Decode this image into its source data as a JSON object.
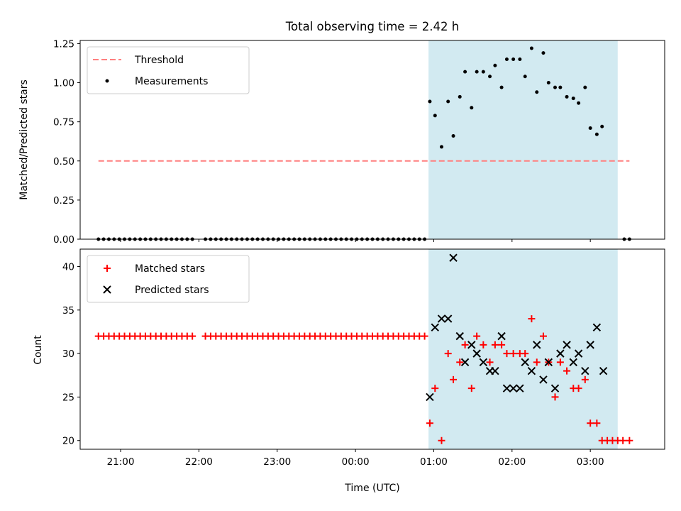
{
  "chart_data": {
    "title": "Total observing time = 2.42 h",
    "xlabel": "Time (UTC)",
    "x_ticks": [
      "21:00",
      "22:00",
      "23:00",
      "00:00",
      "01:00",
      "02:00",
      "03:00"
    ],
    "x_range": [
      "20:29",
      "03:57"
    ],
    "shaded_region": {
      "start": "00:56",
      "end": "03:21",
      "color": "#add8e6"
    },
    "panels": [
      {
        "type": "scatter",
        "ylabel": "Matched/Predicted stars",
        "ylim": [
          0,
          1.27
        ],
        "y_ticks": [
          "0.00",
          "0.25",
          "0.50",
          "0.75",
          "1.00",
          "1.25"
        ],
        "legend": {
          "position": "top-left",
          "entries": [
            "Threshold",
            "Measurements"
          ]
        },
        "threshold": {
          "name": "Threshold",
          "value": 0.5,
          "start": "20:43",
          "end": "03:30",
          "color": "#ff7f7f",
          "style": "dashed"
        },
        "series": [
          {
            "name": "Measurements",
            "marker": "dot",
            "color": "#000000",
            "points": [
              [
                "20:43",
                0
              ],
              [
                "20:47",
                0
              ],
              [
                "20:51",
                0
              ],
              [
                "20:55",
                0
              ],
              [
                "20:59",
                0
              ],
              [
                "21:03",
                0
              ],
              [
                "21:07",
                0
              ],
              [
                "21:11",
                0
              ],
              [
                "21:15",
                0
              ],
              [
                "21:19",
                0
              ],
              [
                "21:23",
                0
              ],
              [
                "21:27",
                0
              ],
              [
                "21:31",
                0
              ],
              [
                "21:35",
                0
              ],
              [
                "21:39",
                0
              ],
              [
                "21:43",
                0
              ],
              [
                "21:47",
                0
              ],
              [
                "21:51",
                0
              ],
              [
                "21:55",
                0
              ],
              [
                "22:05",
                0
              ],
              [
                "22:09",
                0
              ],
              [
                "22:13",
                0
              ],
              [
                "22:17",
                0
              ],
              [
                "22:21",
                0
              ],
              [
                "22:25",
                0
              ],
              [
                "22:29",
                0
              ],
              [
                "22:33",
                0
              ],
              [
                "22:37",
                0
              ],
              [
                "22:41",
                0
              ],
              [
                "22:45",
                0
              ],
              [
                "22:49",
                0
              ],
              [
                "22:53",
                0
              ],
              [
                "22:57",
                0
              ],
              [
                "23:01",
                0
              ],
              [
                "23:05",
                0
              ],
              [
                "23:09",
                0
              ],
              [
                "23:13",
                0
              ],
              [
                "23:17",
                0
              ],
              [
                "23:21",
                0
              ],
              [
                "23:25",
                0
              ],
              [
                "23:29",
                0
              ],
              [
                "23:33",
                0
              ],
              [
                "23:37",
                0
              ],
              [
                "23:41",
                0
              ],
              [
                "23:45",
                0
              ],
              [
                "23:49",
                0
              ],
              [
                "23:53",
                0
              ],
              [
                "23:57",
                0
              ],
              [
                "00:01",
                0
              ],
              [
                "00:05",
                0
              ],
              [
                "00:09",
                0
              ],
              [
                "00:13",
                0
              ],
              [
                "00:17",
                0
              ],
              [
                "00:21",
                0
              ],
              [
                "00:25",
                0
              ],
              [
                "00:29",
                0
              ],
              [
                "00:33",
                0
              ],
              [
                "00:37",
                0
              ],
              [
                "00:41",
                0
              ],
              [
                "00:45",
                0
              ],
              [
                "00:49",
                0
              ],
              [
                "00:53",
                0
              ],
              [
                "00:57",
                0.88
              ],
              [
                "01:01",
                0.79
              ],
              [
                "01:06",
                0.59
              ],
              [
                "01:11",
                0.88
              ],
              [
                "01:15",
                0.66
              ],
              [
                "01:20",
                0.91
              ],
              [
                "01:24",
                1.07
              ],
              [
                "01:29",
                0.84
              ],
              [
                "01:33",
                1.07
              ],
              [
                "01:38",
                1.07
              ],
              [
                "01:43",
                1.04
              ],
              [
                "01:47",
                1.11
              ],
              [
                "01:52",
                0.97
              ],
              [
                "01:56",
                1.15
              ],
              [
                "02:01",
                1.15
              ],
              [
                "02:06",
                1.15
              ],
              [
                "02:10",
                1.04
              ],
              [
                "02:15",
                1.22
              ],
              [
                "02:19",
                0.94
              ],
              [
                "02:24",
                1.19
              ],
              [
                "02:28",
                1.0
              ],
              [
                "02:33",
                0.97
              ],
              [
                "02:37",
                0.97
              ],
              [
                "02:42",
                0.91
              ],
              [
                "02:47",
                0.9
              ],
              [
                "02:51",
                0.87
              ],
              [
                "02:56",
                0.97
              ],
              [
                "03:00",
                0.71
              ],
              [
                "03:05",
                0.67
              ],
              [
                "03:09",
                0.72
              ],
              [
                "03:26",
                0
              ],
              [
                "03:30",
                0
              ]
            ]
          }
        ]
      },
      {
        "type": "scatter",
        "ylabel": "Count",
        "ylim": [
          19,
          42
        ],
        "y_ticks": [
          "20",
          "25",
          "30",
          "35",
          "40"
        ],
        "legend": {
          "position": "top-left",
          "entries": [
            "Matched stars",
            "Predicted stars"
          ]
        },
        "series": [
          {
            "name": "Matched stars",
            "marker": "plus",
            "color": "#ff0000",
            "points": [
              [
                "20:43",
                32
              ],
              [
                "20:47",
                32
              ],
              [
                "20:51",
                32
              ],
              [
                "20:55",
                32
              ],
              [
                "20:59",
                32
              ],
              [
                "21:03",
                32
              ],
              [
                "21:07",
                32
              ],
              [
                "21:11",
                32
              ],
              [
                "21:15",
                32
              ],
              [
                "21:19",
                32
              ],
              [
                "21:23",
                32
              ],
              [
                "21:27",
                32
              ],
              [
                "21:31",
                32
              ],
              [
                "21:35",
                32
              ],
              [
                "21:39",
                32
              ],
              [
                "21:43",
                32
              ],
              [
                "21:47",
                32
              ],
              [
                "21:51",
                32
              ],
              [
                "21:55",
                32
              ],
              [
                "22:05",
                32
              ],
              [
                "22:09",
                32
              ],
              [
                "22:13",
                32
              ],
              [
                "22:17",
                32
              ],
              [
                "22:21",
                32
              ],
              [
                "22:25",
                32
              ],
              [
                "22:29",
                32
              ],
              [
                "22:33",
                32
              ],
              [
                "22:37",
                32
              ],
              [
                "22:41",
                32
              ],
              [
                "22:45",
                32
              ],
              [
                "22:49",
                32
              ],
              [
                "22:53",
                32
              ],
              [
                "22:57",
                32
              ],
              [
                "23:01",
                32
              ],
              [
                "23:05",
                32
              ],
              [
                "23:09",
                32
              ],
              [
                "23:13",
                32
              ],
              [
                "23:17",
                32
              ],
              [
                "23:21",
                32
              ],
              [
                "23:25",
                32
              ],
              [
                "23:29",
                32
              ],
              [
                "23:33",
                32
              ],
              [
                "23:37",
                32
              ],
              [
                "23:41",
                32
              ],
              [
                "23:45",
                32
              ],
              [
                "23:49",
                32
              ],
              [
                "23:53",
                32
              ],
              [
                "23:57",
                32
              ],
              [
                "00:01",
                32
              ],
              [
                "00:05",
                32
              ],
              [
                "00:09",
                32
              ],
              [
                "00:13",
                32
              ],
              [
                "00:17",
                32
              ],
              [
                "00:21",
                32
              ],
              [
                "00:25",
                32
              ],
              [
                "00:29",
                32
              ],
              [
                "00:33",
                32
              ],
              [
                "00:37",
                32
              ],
              [
                "00:41",
                32
              ],
              [
                "00:45",
                32
              ],
              [
                "00:49",
                32
              ],
              [
                "00:53",
                32
              ],
              [
                "00:57",
                22
              ],
              [
                "01:01",
                26
              ],
              [
                "01:06",
                20
              ],
              [
                "01:11",
                30
              ],
              [
                "01:15",
                27
              ],
              [
                "01:20",
                29
              ],
              [
                "01:24",
                31
              ],
              [
                "01:29",
                26
              ],
              [
                "01:33",
                32
              ],
              [
                "01:38",
                31
              ],
              [
                "01:43",
                29
              ],
              [
                "01:47",
                31
              ],
              [
                "01:52",
                31
              ],
              [
                "01:56",
                30
              ],
              [
                "02:01",
                30
              ],
              [
                "02:06",
                30
              ],
              [
                "02:10",
                30
              ],
              [
                "02:15",
                34
              ],
              [
                "02:19",
                29
              ],
              [
                "02:24",
                32
              ],
              [
                "02:28",
                29
              ],
              [
                "02:33",
                25
              ],
              [
                "02:37",
                29
              ],
              [
                "02:42",
                28
              ],
              [
                "02:47",
                26
              ],
              [
                "02:51",
                26
              ],
              [
                "02:56",
                27
              ],
              [
                "03:00",
                22
              ],
              [
                "03:05",
                22
              ],
              [
                "03:09",
                20
              ],
              [
                "03:13",
                20
              ],
              [
                "03:17",
                20
              ],
              [
                "03:21",
                20
              ],
              [
                "03:25",
                20
              ],
              [
                "03:30",
                20
              ]
            ]
          },
          {
            "name": "Predicted stars",
            "marker": "x",
            "color": "#000000",
            "points": [
              [
                "00:57",
                25
              ],
              [
                "01:01",
                33
              ],
              [
                "01:06",
                34
              ],
              [
                "01:11",
                34
              ],
              [
                "01:15",
                41
              ],
              [
                "01:20",
                32
              ],
              [
                "01:24",
                29
              ],
              [
                "01:29",
                31
              ],
              [
                "01:33",
                30
              ],
              [
                "01:38",
                29
              ],
              [
                "01:43",
                28
              ],
              [
                "01:47",
                28
              ],
              [
                "01:52",
                32
              ],
              [
                "01:56",
                26
              ],
              [
                "02:01",
                26
              ],
              [
                "02:06",
                26
              ],
              [
                "02:10",
                29
              ],
              [
                "02:15",
                28
              ],
              [
                "02:19",
                31
              ],
              [
                "02:24",
                27
              ],
              [
                "02:28",
                29
              ],
              [
                "02:33",
                26
              ],
              [
                "02:37",
                30
              ],
              [
                "02:42",
                31
              ],
              [
                "02:47",
                29
              ],
              [
                "02:51",
                30
              ],
              [
                "02:56",
                28
              ],
              [
                "03:00",
                31
              ],
              [
                "03:05",
                33
              ],
              [
                "03:10",
                28
              ]
            ]
          }
        ]
      }
    ]
  }
}
